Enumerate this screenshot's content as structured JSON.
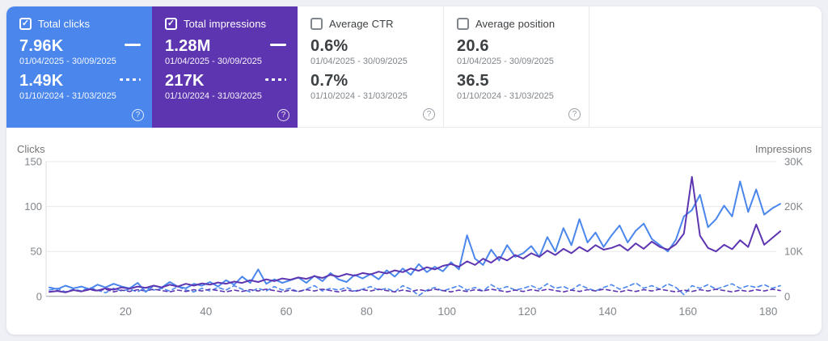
{
  "icons": {
    "check_glyph": "✓",
    "help_glyph": "?"
  },
  "colors": {
    "page_background": "#eef0f6",
    "clicks_accent": "#4a86ec",
    "impressions_accent": "#5e35b1",
    "grid": "#e8e8e8",
    "axis_text": "#80868b"
  },
  "cards": [
    {
      "label": "Total clicks",
      "selected": true,
      "accent": "#4a86ec",
      "rows": [
        {
          "value": "7.96K",
          "range": "01/04/2025 - 30/09/2025",
          "indicator": "solid"
        },
        {
          "value": "1.49K",
          "range": "01/10/2024 - 31/03/2025",
          "indicator": "dashed"
        }
      ]
    },
    {
      "label": "Total impressions",
      "selected": true,
      "accent": "#5e35b1",
      "rows": [
        {
          "value": "1.28M",
          "range": "01/04/2025 - 30/09/2025",
          "indicator": "solid"
        },
        {
          "value": "217K",
          "range": "01/10/2024 - 31/03/2025",
          "indicator": "dashed"
        }
      ]
    },
    {
      "label": "Average CTR",
      "selected": false,
      "rows": [
        {
          "value": "0.6%",
          "range": "01/04/2025 - 30/09/2025"
        },
        {
          "value": "0.7%",
          "range": "01/10/2024 - 31/03/2025"
        }
      ]
    },
    {
      "label": "Average position",
      "selected": false,
      "rows": [
        {
          "value": "20.6",
          "range": "01/04/2025 - 30/09/2025"
        },
        {
          "value": "36.5",
          "range": "01/10/2024 - 31/03/2025"
        }
      ]
    }
  ],
  "chart_data": {
    "type": "line",
    "left_axis": {
      "label": "Clicks",
      "ticks": [
        0,
        50,
        100,
        150
      ],
      "max": 150
    },
    "right_axis": {
      "label": "Impressions",
      "ticks": [
        0,
        10000,
        20000,
        30000
      ],
      "tick_labels": [
        "0",
        "10K",
        "20K",
        "30K"
      ],
      "max": 30000
    },
    "x_axis": {
      "min": 1,
      "max": 183,
      "ticks": [
        20,
        40,
        60,
        80,
        100,
        120,
        140,
        160,
        180
      ]
    },
    "grid": true,
    "legend_position": "none",
    "series": [
      {
        "name": "Clicks 01/04/2025 - 30/09/2025",
        "axis": "left",
        "style": "solid",
        "color": "#4a86ec",
        "x_start": 1,
        "x_step": 2,
        "values": [
          10,
          8,
          12,
          9,
          11,
          8,
          13,
          10,
          14,
          11,
          9,
          15,
          5,
          12,
          10,
          16,
          11,
          9,
          14,
          12,
          16,
          11,
          18,
          13,
          22,
          15,
          30,
          14,
          19,
          15,
          18,
          21,
          15,
          23,
          17,
          26,
          19,
          16,
          24,
          20,
          25,
          19,
          29,
          22,
          31,
          24,
          36,
          27,
          33,
          28,
          38,
          30,
          68,
          42,
          35,
          52,
          40,
          57,
          44,
          48,
          56,
          44,
          66,
          50,
          76,
          57,
          86,
          60,
          71,
          55,
          68,
          79,
          60,
          73,
          81,
          64,
          57,
          50,
          63,
          89,
          96,
          113,
          77,
          86,
          101,
          89,
          128,
          94,
          119,
          91,
          98,
          103
        ]
      },
      {
        "name": "Clicks 01/10/2024 - 31/03/2025",
        "axis": "left",
        "style": "dashed",
        "color": "#4a86ec",
        "x_start": 1,
        "x_step": 2,
        "values": [
          7,
          9,
          5,
          8,
          6,
          10,
          7,
          4,
          9,
          6,
          8,
          5,
          10,
          7,
          9,
          6,
          11,
          7,
          5,
          9,
          6,
          10,
          7,
          12,
          8,
          5,
          9,
          6,
          11,
          7,
          9,
          5,
          8,
          12,
          6,
          9,
          7,
          10,
          6,
          8,
          11,
          7,
          9,
          5,
          12,
          8,
          1,
          7,
          10,
          6,
          9,
          12,
          7,
          10,
          6,
          13,
          8,
          11,
          7,
          9,
          12,
          8,
          14,
          9,
          11,
          7,
          13,
          9,
          6,
          10,
          13,
          8,
          11,
          15,
          9,
          12,
          8,
          14,
          10,
          2,
          12,
          9,
          13,
          8,
          11,
          14,
          9,
          12,
          10,
          13,
          9,
          12
        ]
      },
      {
        "name": "Impressions 01/04/2025 - 30/09/2025",
        "axis": "right",
        "style": "solid",
        "color": "#5e35b1",
        "x_start": 1,
        "x_step": 2,
        "values": [
          1000,
          1200,
          900,
          1400,
          1100,
          1600,
          1300,
          1800,
          1500,
          2000,
          1700,
          2200,
          1900,
          2400,
          2000,
          2600,
          2200,
          2800,
          2400,
          2900,
          2600,
          3100,
          2800,
          3300,
          3000,
          3600,
          3200,
          3800,
          3400,
          4000,
          3700,
          4200,
          3900,
          4500,
          4100,
          4800,
          4400,
          5000,
          4600,
          5200,
          4900,
          5500,
          5100,
          5800,
          5400,
          6200,
          5700,
          6500,
          6000,
          6800,
          7200,
          6600,
          7800,
          7000,
          8400,
          7500,
          8800,
          8000,
          9200,
          8400,
          9600,
          8800,
          10200,
          9200,
          10600,
          9600,
          11000,
          10000,
          11400,
          10400,
          10800,
          11500,
          10200,
          11800,
          10600,
          12200,
          11000,
          10400,
          11600,
          14000,
          26600,
          13500,
          10800,
          10000,
          11500,
          10500,
          12500,
          11000,
          16000,
          11500,
          13000,
          14500
        ]
      },
      {
        "name": "Impressions 01/10/2024 - 31/03/2025",
        "axis": "right",
        "style": "dashed",
        "color": "#5e35b1",
        "x_start": 1,
        "x_step": 2,
        "values": [
          1000,
          1300,
          900,
          1400,
          1100,
          1500,
          1200,
          1600,
          1000,
          1400,
          1100,
          1500,
          1200,
          1600,
          1300,
          1000,
          1400,
          1100,
          1500,
          1200,
          1600,
          1300,
          1000,
          1400,
          1100,
          1500,
          1200,
          1600,
          1300,
          1000,
          1400,
          1100,
          1500,
          1200,
          1600,
          1300,
          1000,
          1400,
          1100,
          1500,
          1200,
          1600,
          1300,
          1000,
          1400,
          1100,
          1500,
          1200,
          1600,
          1300,
          1000,
          1400,
          1100,
          1500,
          1200,
          1600,
          1300,
          1000,
          1400,
          1100,
          1500,
          1200,
          1600,
          1300,
          1000,
          1400,
          1100,
          1500,
          1200,
          1600,
          1300,
          1000,
          1400,
          1100,
          1500,
          1200,
          1600,
          1300,
          1000,
          1400,
          1100,
          1500,
          1200,
          1600,
          1300,
          1000,
          1400,
          1100,
          1500,
          1200,
          1600,
          1300
        ]
      }
    ]
  }
}
